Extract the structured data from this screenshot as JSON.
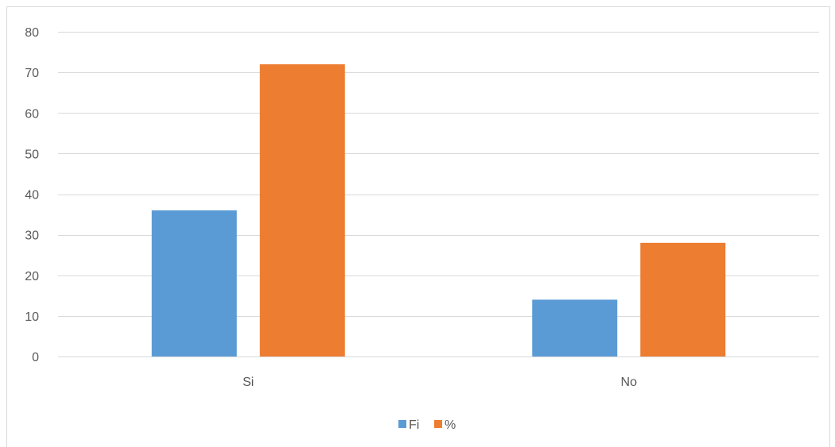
{
  "chart_data": {
    "type": "bar",
    "categories": [
      "Si",
      "No"
    ],
    "series": [
      {
        "name": "Fi",
        "values": [
          36,
          14
        ],
        "color": "#5b9bd5"
      },
      {
        "name": "%",
        "values": [
          72,
          28
        ],
        "color": "#ed7d31"
      }
    ],
    "ylim": [
      0,
      80
    ],
    "yticks": [
      0,
      10,
      20,
      30,
      40,
      50,
      60,
      70,
      80
    ],
    "grid": true,
    "legend_position": "bottom",
    "gridline_color": "#d9d9d9"
  }
}
